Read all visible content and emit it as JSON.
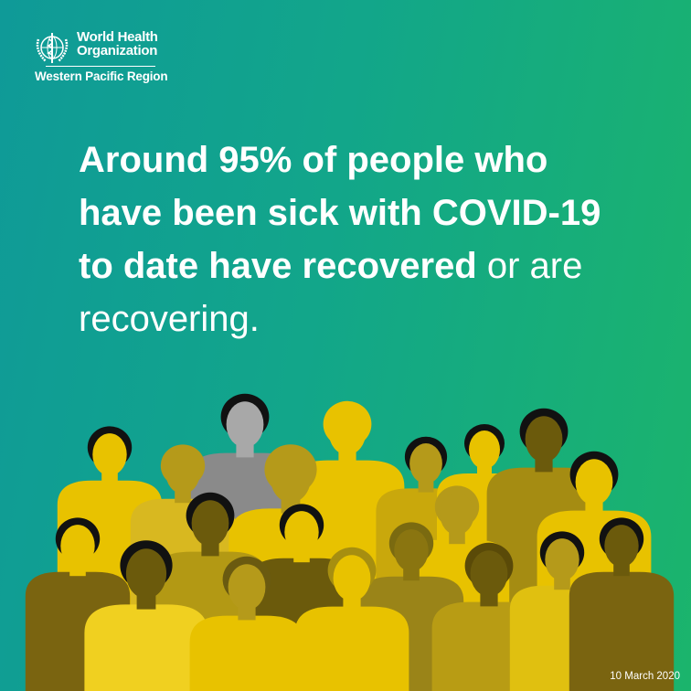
{
  "logo": {
    "line1": "World Health",
    "line2": "Organization",
    "region": "Western Pacific Region",
    "emblem": "who-emblem-icon"
  },
  "headline": {
    "line1_bold": "Around 95% of people who",
    "line2_bold": "have been sick with COVID-19",
    "line3_bold": "to date have recovered",
    "line3_regular": " or are",
    "line4_regular": "recovering."
  },
  "illustration": "crowd-of-people",
  "colors": {
    "yellow": "#e8c200",
    "ochre": "#b59a1a",
    "dark": "#6b5a0c",
    "grey": "#8a8a8a",
    "teal": "#0f9a98",
    "green": "#1bb46c"
  },
  "date": "10 March 2020"
}
